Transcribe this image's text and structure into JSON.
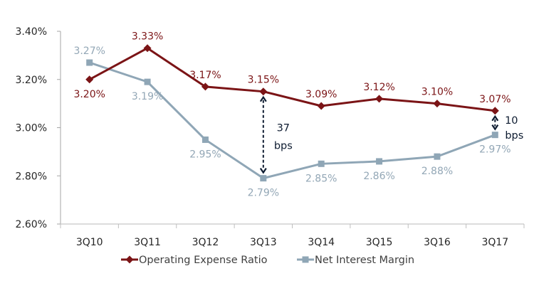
{
  "chart_data": {
    "type": "line",
    "title": "",
    "xlabel": "",
    "ylabel": "",
    "categories": [
      "3Q10",
      "3Q11",
      "3Q12",
      "3Q13",
      "3Q14",
      "3Q15",
      "3Q16",
      "3Q17"
    ],
    "ylim": [
      2.6,
      3.4
    ],
    "yticks": [
      2.6,
      2.8,
      3.0,
      3.2,
      3.4
    ],
    "ytick_labels": [
      "2.60%",
      "2.80%",
      "3.00%",
      "3.20%",
      "3.40%"
    ],
    "grid": false,
    "legend_position": "bottom",
    "series": [
      {
        "name": "Operating Expense Ratio",
        "marker": "diamond",
        "color": "#7b1416",
        "label_color": "#7b1416",
        "values": [
          3.2,
          3.33,
          3.17,
          3.15,
          3.09,
          3.12,
          3.1,
          3.07
        ],
        "labels": [
          "3.20%",
          "3.33%",
          "3.17%",
          "3.15%",
          "3.09%",
          "3.12%",
          "3.10%",
          "3.07%"
        ],
        "label_positions": [
          "below",
          "above",
          "above",
          "above",
          "above",
          "above",
          "above",
          "above"
        ]
      },
      {
        "name": "Net Interest Margin",
        "marker": "square",
        "color": "#8fa6b6",
        "label_color": "#93a7b6",
        "values": [
          3.27,
          3.19,
          2.95,
          2.79,
          2.85,
          2.86,
          2.88,
          2.97
        ],
        "labels": [
          "3.27%",
          "3.19%",
          "2.95%",
          "2.79%",
          "2.85%",
          "2.86%",
          "2.88%",
          "2.97%"
        ],
        "label_positions": [
          "above",
          "below",
          "below",
          "below",
          "below",
          "below",
          "below",
          "below"
        ]
      }
    ],
    "annotations": [
      {
        "category": "3Q13",
        "from": 2.79,
        "to": 3.15,
        "style": "dashed-double-arrow",
        "line1": "37",
        "line2": "bps"
      },
      {
        "category": "3Q17",
        "from": 2.97,
        "to": 3.07,
        "style": "dashed-double-arrow",
        "line1": "10",
        "line2": "bps"
      }
    ],
    "annotation_color": "#0d1b30"
  }
}
